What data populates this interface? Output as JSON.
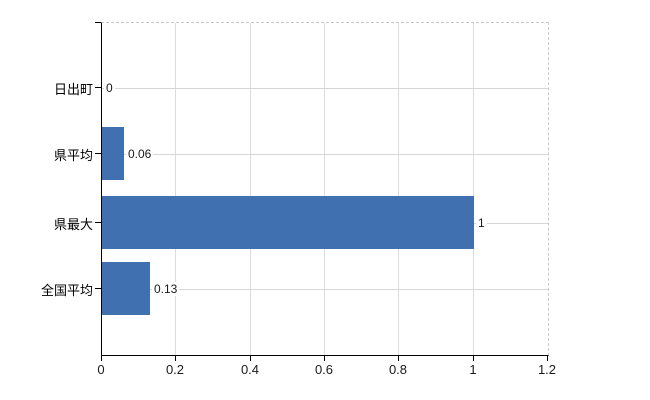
{
  "chart_data": {
    "type": "bar",
    "orientation": "horizontal",
    "title": "",
    "xlabel": "",
    "ylabel": "",
    "categories": [
      "日出町",
      "県平均",
      "県最大",
      "全国平均"
    ],
    "values": [
      0,
      0.06,
      1,
      0.13
    ],
    "value_labels": [
      "0",
      "0.06",
      "1",
      "0.13"
    ],
    "x_ticks": [
      0,
      0.2,
      0.4,
      0.6,
      0.8,
      1,
      1.2
    ],
    "x_tick_labels": [
      "0",
      "0.2",
      "0.4",
      "0.6",
      "0.8",
      "1",
      "1.2"
    ],
    "xlim": [
      0,
      1.2
    ],
    "grid": true,
    "legend": false,
    "colors": {
      "bar": "#4070af",
      "axis": "#000000",
      "vgrid": "#dcdcdc",
      "hgrid": "#d4d8d4",
      "plot_border": "#c9c9c9",
      "text": "#1a1a1a",
      "background": "#ffffff"
    }
  }
}
